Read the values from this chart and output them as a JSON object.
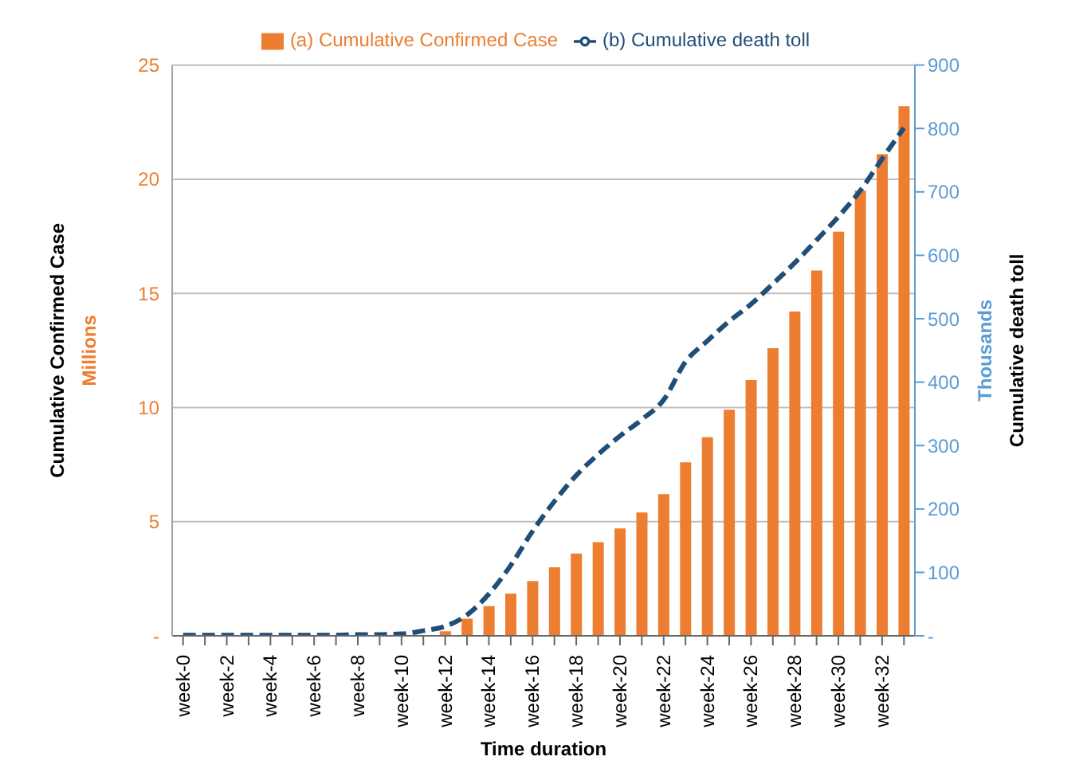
{
  "chart_data": {
    "type": "bar",
    "xlabel": "Time duration",
    "ylabel": "Cumulative Confirmed Case",
    "y2label": "Cumulative death toll",
    "annotations": [
      "Millions",
      "Thousands"
    ],
    "categories": [
      "week-0",
      null,
      "week-2",
      null,
      "week-4",
      null,
      "week-6",
      null,
      "week-8",
      null,
      "week-10",
      null,
      "week-12",
      null,
      "week-14",
      null,
      "week-16",
      null,
      "week-18",
      null,
      "week-20",
      null,
      "week-22",
      null,
      "week-24",
      null,
      "week-26",
      null,
      "week-28",
      null,
      "week-30",
      null,
      "week-32",
      null
    ],
    "series": [
      {
        "name": "(a) Cumulative Confirmed Case",
        "color": "#ed7d31",
        "values": [
          0,
          0,
          0,
          0,
          0,
          0,
          0,
          0,
          0,
          0,
          0,
          0,
          0.2,
          0.75,
          1.3,
          1.85,
          2.4,
          3.0,
          3.6,
          4.1,
          4.7,
          5.4,
          6.2,
          7.6,
          8.7,
          9.9,
          11.2,
          12.6,
          14.2,
          16.0,
          17.7,
          19.5,
          21.1,
          23.2
        ]
      },
      {
        "name": "(b) Cumulative death toll",
        "type": "line",
        "axis": "y2",
        "color": "#1f4e79",
        "line_style": "dashed",
        "marker": "none",
        "values": [
          1,
          1,
          1,
          1,
          1,
          1,
          1,
          1,
          2,
          2,
          3,
          8,
          15,
          33,
          66,
          111,
          165,
          212,
          253,
          286,
          315,
          341,
          372,
          432,
          465,
          496,
          523,
          555,
          588,
          624,
          661,
          702,
          752,
          801
        ]
      }
    ],
    "ylim": [
      0,
      25
    ],
    "yticks": [
      {
        "value": 0,
        "label": "-"
      },
      5,
      10,
      15,
      20,
      25
    ],
    "y2lim": [
      0,
      900
    ],
    "y2ticks": [
      {
        "value": 0,
        "label": "-"
      },
      100,
      200,
      300,
      400,
      500,
      600,
      700,
      800,
      900
    ],
    "grid": "y",
    "legend": "top"
  }
}
